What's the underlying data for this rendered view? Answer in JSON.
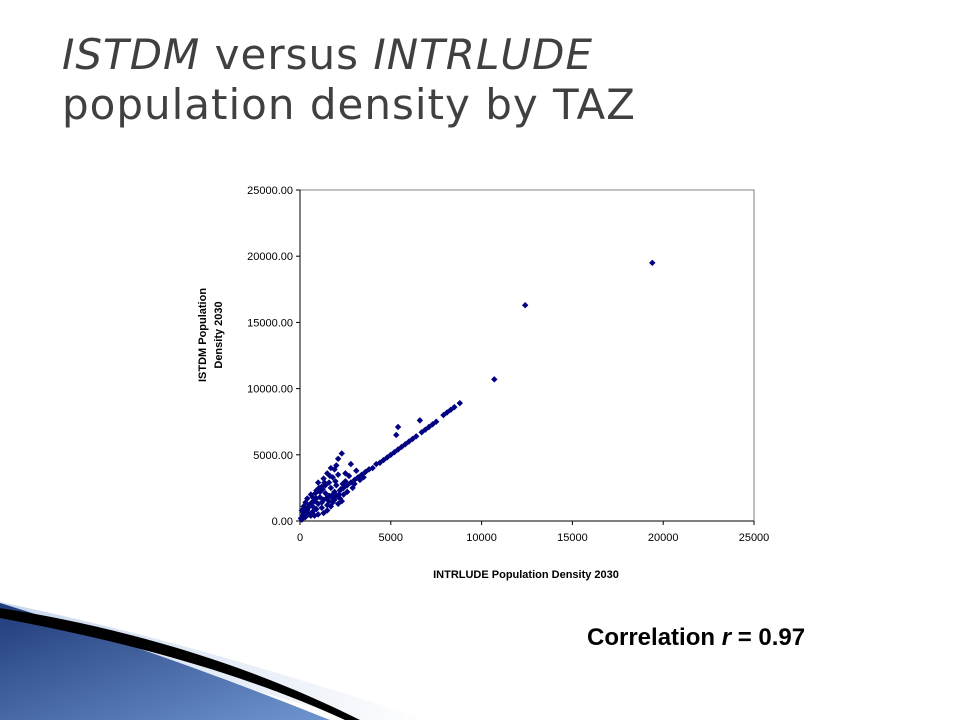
{
  "slide": {
    "title_part1": "ISTDM",
    "title_part2": " versus ",
    "title_part3": "INTRLUDE",
    "title_line2": "population density by TAZ",
    "correlation_label": "Correlation ",
    "correlation_symbol": "r",
    "correlation_value": " = 0.97"
  },
  "colors": {
    "marker": "#000080",
    "title": "#404040",
    "accent_dark": "#1f3a78",
    "accent_light": "#8fb0dc"
  },
  "chart_data": {
    "type": "scatter",
    "xlabel": "INTRLUDE Population Density 2030",
    "ylabel_line1": "ISTDM Population",
    "ylabel_line2": "Density 2030",
    "xlim": [
      0,
      25000
    ],
    "ylim": [
      0,
      25000
    ],
    "x_ticks": [
      "0",
      "5000",
      "10000",
      "15000",
      "20000",
      "25000"
    ],
    "y_ticks": [
      "0.00",
      "5000.00",
      "10000.00",
      "15000.00",
      "20000.00",
      "25000.00"
    ],
    "grid": false,
    "legend": "none",
    "marker": "diamond",
    "points": [
      [
        19400,
        19500
      ],
      [
        12400,
        16300
      ],
      [
        10700,
        10700
      ],
      [
        8800,
        8900
      ],
      [
        8500,
        8600
      ],
      [
        8300,
        8400
      ],
      [
        8100,
        8200
      ],
      [
        7900,
        8000
      ],
      [
        7500,
        7500
      ],
      [
        7300,
        7300
      ],
      [
        7100,
        7100
      ],
      [
        6900,
        6900
      ],
      [
        6700,
        6700
      ],
      [
        6600,
        7600
      ],
      [
        6400,
        6400
      ],
      [
        6200,
        6200
      ],
      [
        6000,
        6000
      ],
      [
        5800,
        5800
      ],
      [
        5600,
        5600
      ],
      [
        5400,
        5400
      ],
      [
        5200,
        5200
      ],
      [
        5400,
        7100
      ],
      [
        5300,
        6500
      ],
      [
        5000,
        5000
      ],
      [
        4800,
        4800
      ],
      [
        4600,
        4600
      ],
      [
        4400,
        4400
      ],
      [
        4200,
        4300
      ],
      [
        4000,
        4000
      ],
      [
        3800,
        3900
      ],
      [
        3600,
        3700
      ],
      [
        3400,
        3500
      ],
      [
        3200,
        3300
      ],
      [
        3000,
        3100
      ],
      [
        2800,
        2900
      ],
      [
        2600,
        2700
      ],
      [
        2400,
        2500
      ],
      [
        2200,
        2300
      ],
      [
        2300,
        5100
      ],
      [
        2100,
        4700
      ],
      [
        2000,
        4200
      ],
      [
        2500,
        3600
      ],
      [
        2800,
        4300
      ],
      [
        3100,
        3800
      ],
      [
        1900,
        3900
      ],
      [
        1700,
        4000
      ],
      [
        1500,
        3600
      ],
      [
        1300,
        3200
      ],
      [
        1800,
        3300
      ],
      [
        2100,
        3500
      ],
      [
        1600,
        2900
      ],
      [
        1200,
        2600
      ],
      [
        900,
        2300
      ],
      [
        600,
        2000
      ],
      [
        400,
        1700
      ],
      [
        300,
        1400
      ],
      [
        200,
        1100
      ],
      [
        100,
        800
      ],
      [
        1000,
        2900
      ],
      [
        1400,
        2700
      ],
      [
        1700,
        2500
      ],
      [
        1900,
        2200
      ],
      [
        2000,
        1900
      ],
      [
        2200,
        1700
      ],
      [
        2300,
        1500
      ],
      [
        1800,
        1400
      ],
      [
        1500,
        1200
      ],
      [
        1200,
        1000
      ],
      [
        900,
        900
      ],
      [
        700,
        700
      ],
      [
        500,
        500
      ],
      [
        300,
        300
      ],
      [
        100,
        100
      ],
      [
        1100,
        1800
      ],
      [
        800,
        1500
      ],
      [
        1300,
        1600
      ],
      [
        1600,
        1900
      ],
      [
        500,
        1200
      ],
      [
        700,
        1100
      ],
      [
        1000,
        1300
      ],
      [
        1400,
        2100
      ],
      [
        1100,
        2200
      ],
      [
        2500,
        3000
      ],
      [
        2700,
        3400
      ],
      [
        3000,
        2800
      ],
      [
        2900,
        2500
      ],
      [
        2400,
        2000
      ],
      [
        2600,
        2200
      ],
      [
        1900,
        1600
      ],
      [
        600,
        400
      ],
      [
        400,
        800
      ],
      [
        200,
        600
      ],
      [
        800,
        400
      ],
      [
        1500,
        800
      ],
      [
        1300,
        600
      ],
      [
        1700,
        1100
      ],
      [
        2100,
        1300
      ],
      [
        2000,
        2700
      ],
      [
        1800,
        2000
      ],
      [
        900,
        1700
      ],
      [
        1200,
        1400
      ],
      [
        1600,
        1500
      ],
      [
        700,
        1800
      ],
      [
        1000,
        500
      ],
      [
        300,
        900
      ],
      [
        150,
        400
      ],
      [
        50,
        200
      ],
      [
        1250,
        2400
      ],
      [
        1450,
        1700
      ],
      [
        2450,
        2600
      ],
      [
        3300,
        3100
      ],
      [
        3500,
        3300
      ],
      [
        2350,
        2800
      ],
      [
        1950,
        3000
      ],
      [
        1650,
        3400
      ],
      [
        1350,
        2900
      ],
      [
        1050,
        2500
      ],
      [
        850,
        2100
      ],
      [
        650,
        1400
      ],
      [
        450,
        1000
      ],
      [
        250,
        500
      ],
      [
        1750,
        1800
      ],
      [
        2150,
        2000
      ],
      [
        2250,
        2400
      ]
    ]
  }
}
